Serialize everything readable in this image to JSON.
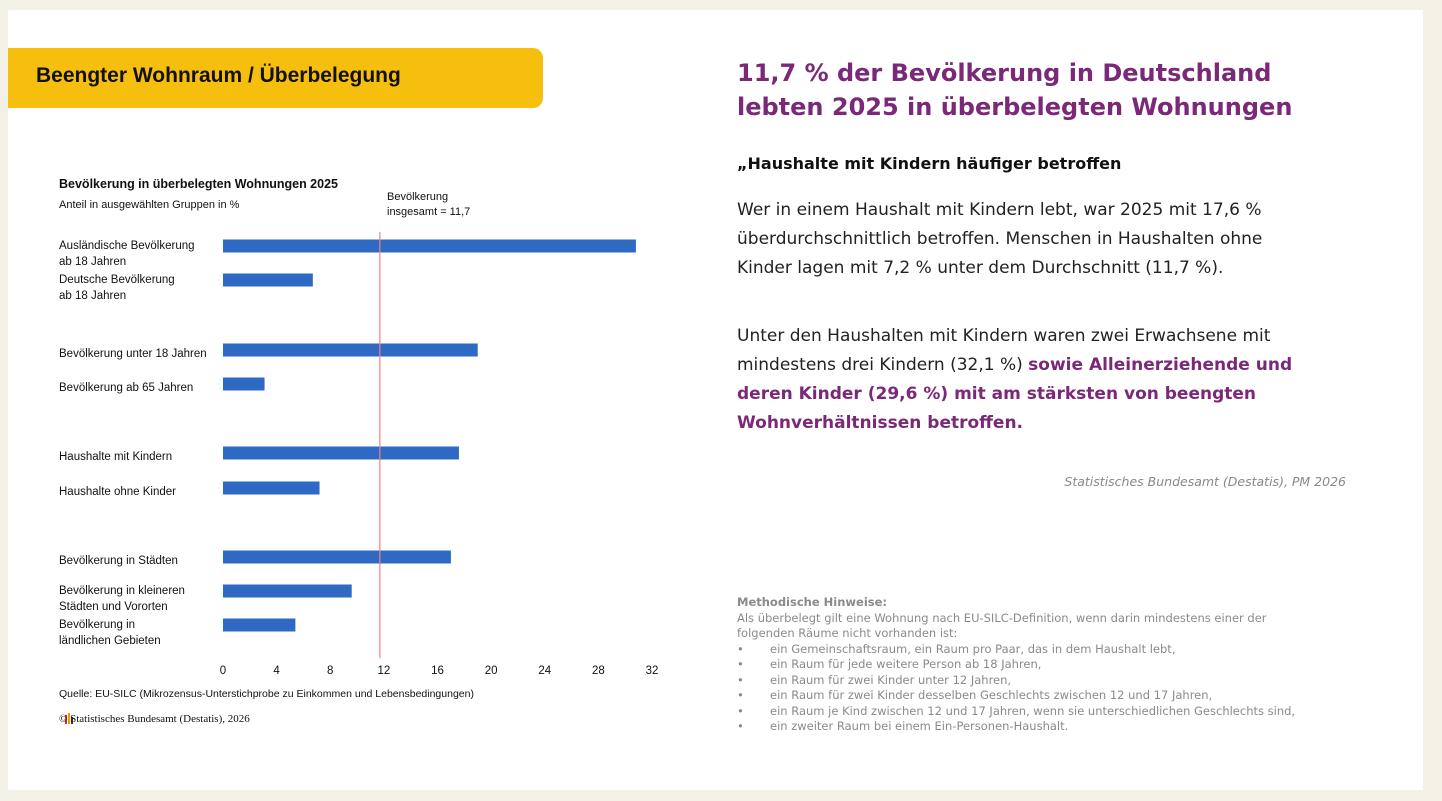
{
  "slide_title": "Beengter Wohnraum / Überbelegung",
  "headline": "11,7 % der Bevölkerung in Deutschland lebten 2025 in überbelegten Wohnungen",
  "subheading": "„Haushalte mit Kindern häufiger betroffen",
  "paragraph1": "Wer in einem Haushalt mit Kindern lebt, war 2025 mit 17,6 % überdurchschnittlich betroffen. Menschen in Haushalten ohne Kinder lagen mit 7,2 % unter dem Durchschnitt (11,7 %).",
  "paragraph2": {
    "normal": "Unter den Haushalten mit Kindern waren zwei Erwachsene mit mindestens drei Kindern (32,1 %) ",
    "highlight": "sowie Alleinerziehende und deren Kinder (29,6 %) mit am stärksten von beengten Wohnverhältnissen betroffen."
  },
  "source": "Statistisches Bundesamt (Destatis), PM 2026",
  "notes": {
    "title": "Methodische Hinweise:",
    "intro": "Als überbelegt gilt eine Wohnung nach EU-SILC-Definition, wenn darin mindestens einer der folgenden Räume nicht vorhanden ist:",
    "items": [
      "ein Gemeinschaftsraum, ein Raum pro Paar, das in dem Haushalt lebt,",
      "ein Raum für jede weitere Person ab 18 Jahren,",
      "ein Raum für zwei Kinder unter 12 Jahren,",
      "ein Raum für zwei Kinder desselben Geschlechts zwischen 12 und 17 Jahren,",
      "ein Raum je Kind zwischen 12 und 17 Jahren, wenn sie unterschiedlichen Geschlechts sind,",
      "ein zweiter Raum bei einem Ein-Personen-Haushalt."
    ]
  },
  "chart_data": {
    "type": "bar",
    "orientation": "horizontal",
    "title": "Bevölkerung in überbelegten Wohnungen 2025",
    "subtitle": "Anteil in ausgewählten Gruppen in %",
    "categories": [
      "Ausländische Bevölkerung\nab 18 Jahren",
      "Deutsche Bevölkerung\nab 18 Jahren",
      "Bevölkerung unter 18 Jahren",
      "Bevölkerung ab 65 Jahren",
      "Haushalte mit Kindern",
      "Haushalte ohne Kinder",
      "Bevölkerung in Städten",
      "Bevölkerung in kleineren\nStädten und Vororten",
      "Bevölkerung in\nländlichen Gebieten"
    ],
    "values": [
      30.8,
      6.7,
      19.0,
      3.1,
      17.6,
      7.2,
      17.0,
      9.6,
      5.4
    ],
    "color": "#2e6ac4",
    "reference": {
      "value": 11.7,
      "label": "Bevölkerung\ninsgesamt = 11,7",
      "color": "#f08080"
    },
    "xlim": [
      0,
      32
    ],
    "xticks": [
      0,
      4,
      8,
      12,
      16,
      20,
      24,
      28,
      32
    ],
    "grid": false,
    "source": "Quelle: EU-SILC (Mikrozensus-Unterstichprobe zu Einkommen und Lebensbedingungen)",
    "copyright": "© Statistisches Bundesamt (Destatis), 2026"
  }
}
